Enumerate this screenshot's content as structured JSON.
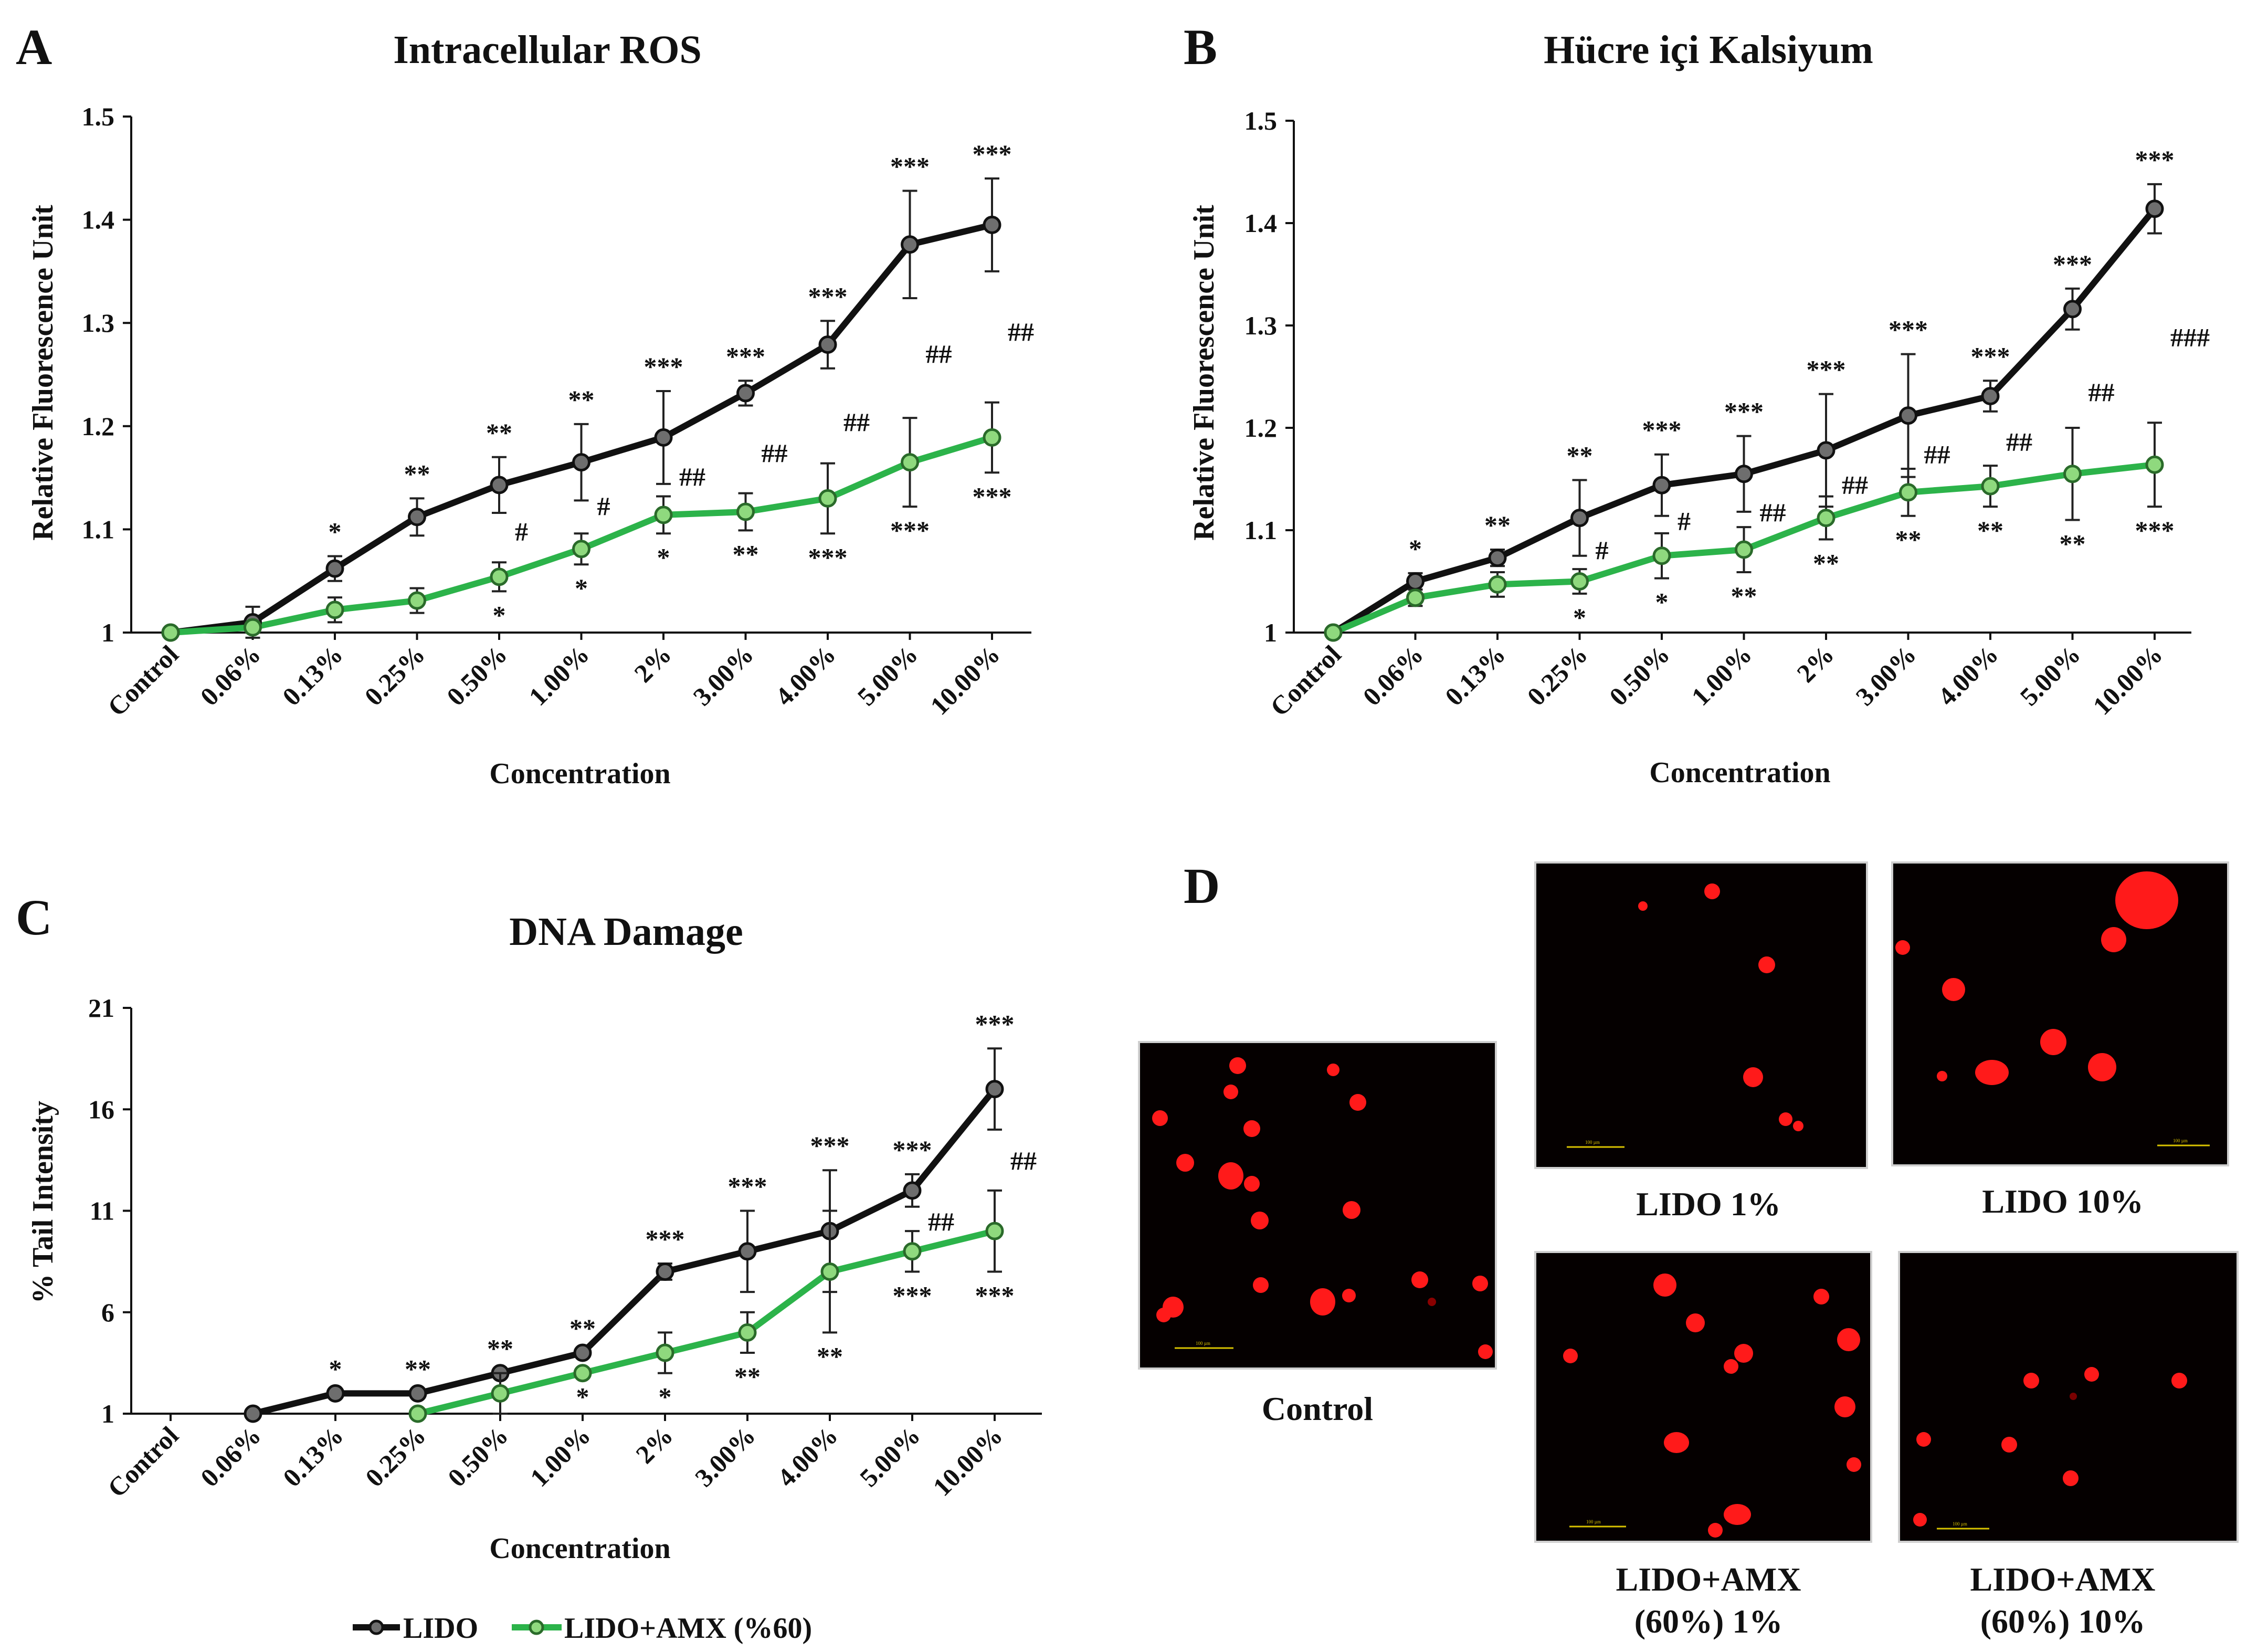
{
  "legend": {
    "lido": "LIDO",
    "lido_amx": "LIDO+AMX (%60)"
  },
  "colors": {
    "lido": "#111111",
    "lido_marker": "#6e6e6e",
    "lido_amx": "#2cb34a",
    "lido_amx_marker": "#8fd97e",
    "axis": "#111111",
    "cell": "#ff1a1a"
  },
  "chart_data": [
    {
      "panel": "A",
      "type": "line",
      "title": "Intracellular ROS",
      "xlabel": "Concentration",
      "ylabel": "Relative  Fluorescence Unit",
      "ylim": [
        1,
        1.5
      ],
      "yticks": [
        1,
        1.1,
        1.2,
        1.3,
        1.4,
        1.5
      ],
      "ytick_labels": [
        "1",
        "1.1",
        "1.2",
        "1.3",
        "1.4",
        "1.5"
      ],
      "categories": [
        "Control",
        "0.06%",
        "0.13%",
        "0.25%",
        "0.50%",
        "1.00%",
        "2%",
        "3.00%",
        "4.00%",
        "5.00%",
        "10.00%"
      ],
      "series": [
        {
          "name": "LIDO",
          "values": [
            1.0,
            1.01,
            1.062,
            1.112,
            1.143,
            1.165,
            1.189,
            1.232,
            1.279,
            1.376,
            1.395
          ],
          "errors": [
            0,
            0.015,
            0.012,
            0.018,
            0.027,
            0.037,
            0.045,
            0.012,
            0.023,
            0.052,
            0.045
          ],
          "annotations": [
            "",
            "",
            "*",
            "**",
            "**",
            "**",
            "***",
            "***",
            "***",
            "***",
            "***"
          ],
          "annotations2": [
            "",
            "",
            "",
            "",
            "#",
            "#",
            "##",
            "##",
            "##",
            "##",
            "##"
          ]
        },
        {
          "name": "LIDO+AMX (%60)",
          "values": [
            1.0,
            1.005,
            1.022,
            1.031,
            1.054,
            1.081,
            1.114,
            1.117,
            1.13,
            1.165,
            1.189
          ],
          "errors": [
            0,
            0.005,
            0.012,
            0.012,
            0.014,
            0.015,
            0.018,
            0.018,
            0.034,
            0.043,
            0.034
          ],
          "annotations": [
            "",
            "",
            "",
            "",
            "*",
            "*",
            "*",
            "**",
            "***",
            "***",
            "***"
          ]
        }
      ]
    },
    {
      "panel": "B",
      "type": "line",
      "title": "Hücre içi Kalsiyum",
      "xlabel": "Concentration",
      "ylabel": "Relative  Fluorescence Unit",
      "ylim": [
        1,
        1.5
      ],
      "yticks": [
        1,
        1.1,
        1.2,
        1.3,
        1.4,
        1.5
      ],
      "ytick_labels": [
        "1",
        "1.1",
        "1.2",
        "1.3",
        "1.4",
        "1.5"
      ],
      "categories": [
        "Control",
        "0.06%",
        "0.13%",
        "0.25%",
        "0.50%",
        "1.00%",
        "2%",
        "3.00%",
        "4.00%",
        "5.00%",
        "10.00%"
      ],
      "series": [
        {
          "name": "LIDO",
          "values": [
            1.0,
            1.05,
            1.073,
            1.112,
            1.144,
            1.155,
            1.178,
            1.212,
            1.231,
            1.316,
            1.414
          ],
          "errors": [
            0,
            0.008,
            0.008,
            0.037,
            0.03,
            0.037,
            0.055,
            0.06,
            0.015,
            0.02,
            0.024
          ],
          "annotations": [
            "",
            "*",
            "**",
            "**",
            "***",
            "***",
            "***",
            "***",
            "***",
            "***",
            "***"
          ],
          "annotations2": [
            "",
            "",
            "",
            "#",
            "#",
            "##",
            "##",
            "##",
            "##",
            "##",
            "###"
          ]
        },
        {
          "name": "LIDO+AMX (%60)",
          "values": [
            1.0,
            1.034,
            1.047,
            1.05,
            1.075,
            1.081,
            1.112,
            1.137,
            1.143,
            1.155,
            1.164
          ],
          "errors": [
            0,
            0.008,
            0.012,
            0.012,
            0.022,
            0.022,
            0.021,
            0.023,
            0.02,
            0.045,
            0.041
          ],
          "annotations": [
            "",
            "",
            "",
            "*",
            "*",
            "**",
            "**",
            "**",
            "**",
            "**",
            "***"
          ]
        }
      ]
    },
    {
      "panel": "C",
      "type": "line",
      "title": "DNA Damage",
      "xlabel": "Concentration",
      "ylabel": "% Tail Intensity",
      "ylim": [
        1,
        21
      ],
      "yticks": [
        1,
        6,
        11,
        16,
        21
      ],
      "ytick_labels": [
        "1",
        "6",
        "11",
        "16",
        "21"
      ],
      "categories": [
        "Control",
        "0.06%",
        "0.13%",
        "0.25%",
        "0.50%",
        "1.00%",
        "2%",
        "3.00%",
        "4.00%",
        "5.00%",
        "10.00%"
      ],
      "series": [
        {
          "name": "LIDO",
          "values": [
            null,
            1.0,
            2.0,
            2.0,
            3.0,
            4.0,
            8.0,
            9.0,
            10.0,
            12.0,
            17.0
          ],
          "errors": [
            0,
            0,
            0,
            0,
            0,
            0,
            0.4,
            2.0,
            3.0,
            0.8,
            2.0
          ],
          "annotations": [
            "",
            "",
            "*",
            "**",
            "**",
            "**",
            "***",
            "***",
            "***",
            "***",
            "***"
          ],
          "annotations2": [
            "",
            "",
            "",
            "",
            "",
            "",
            "",
            "",
            "",
            "##",
            "##"
          ]
        },
        {
          "name": "LIDO+AMX (%60)",
          "values": [
            null,
            null,
            null,
            1.0,
            2.0,
            3.0,
            4.0,
            5.0,
            8.0,
            9.0,
            10.0
          ],
          "errors": [
            0,
            0,
            0,
            0,
            1.0,
            0,
            1.0,
            1.0,
            3.0,
            1.0,
            2.0
          ],
          "annotations": [
            "",
            "",
            "",
            "",
            "",
            "*",
            "*",
            "**",
            "**",
            "***",
            "***"
          ]
        }
      ]
    }
  ],
  "panel_d": {
    "letter": "D",
    "images": [
      {
        "caption_lines": [
          "Control"
        ],
        "scale_label": "100 µm"
      },
      {
        "caption_lines": [
          "LIDO 1%"
        ],
        "scale_label": "100 µm"
      },
      {
        "caption_lines": [
          "LIDO 10%"
        ],
        "scale_label": "100 µm"
      },
      {
        "caption_lines": [
          "LIDO+AMX",
          "(60%) 1%"
        ],
        "scale_label": "100 µm"
      },
      {
        "caption_lines": [
          "LIDO+AMX",
          "(60%) 10%"
        ],
        "scale_label": "100 µm"
      }
    ]
  }
}
